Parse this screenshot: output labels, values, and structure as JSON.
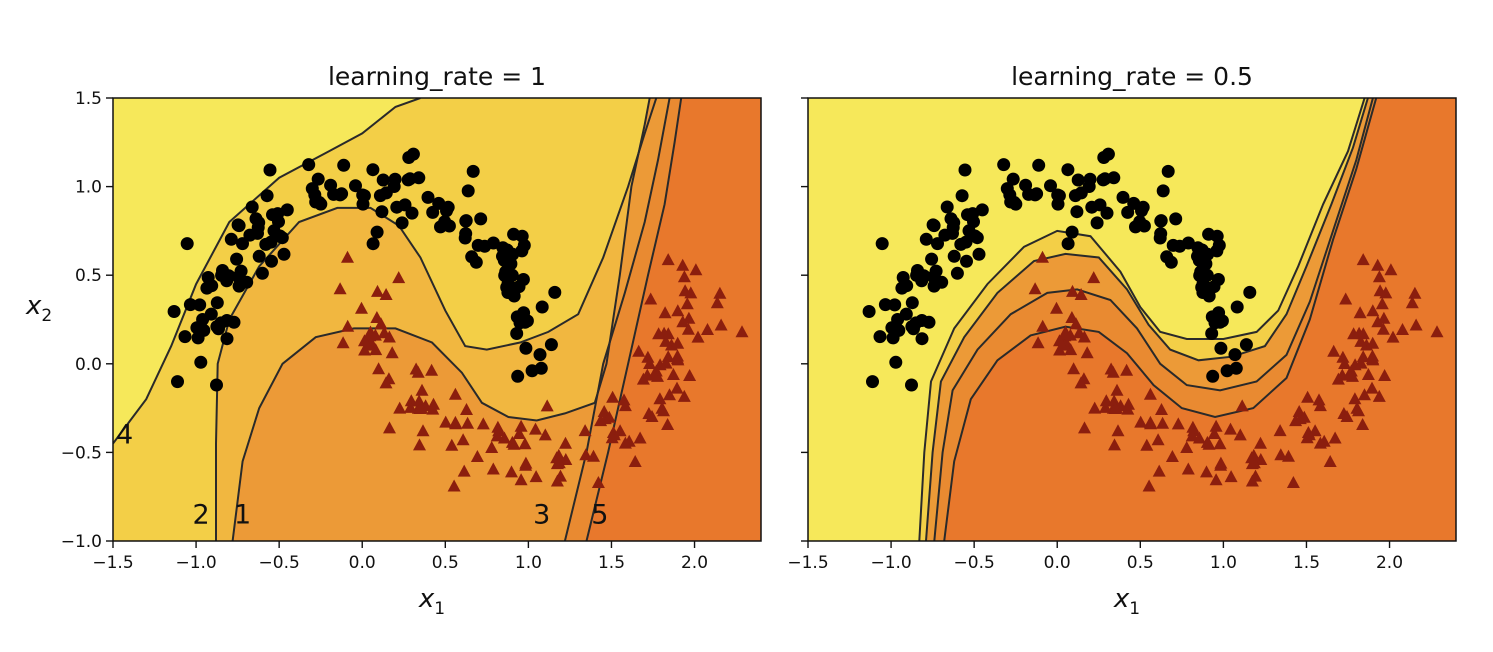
{
  "chart_data": [
    {
      "type": "scatter",
      "title": "learning_rate = 1",
      "xlabel": "x",
      "xlabel_sub": "1",
      "ylabel": "x",
      "ylabel_sub": "2",
      "xlim": [
        -1.5,
        2.4
      ],
      "ylim": [
        -1.0,
        1.5
      ],
      "xticks": [
        "−1.5",
        "−1.0",
        "−0.5",
        "0.0",
        "0.5",
        "1.0",
        "1.5",
        "2.0"
      ],
      "yticks": [
        "−1.0",
        "−0.5",
        "0.0",
        "0.5",
        "1.0",
        "1.5"
      ],
      "grid": false,
      "region_colors": [
        "#f6e85a",
        "#f3cf47",
        "#f1b740",
        "#ec9a37",
        "#e98a31",
        "#e8782c"
      ],
      "boundaries": [
        [
          [
            -1.5,
            -0.45
          ],
          [
            -1.3,
            -0.2
          ],
          [
            -1.15,
            0.1
          ],
          [
            -1.0,
            0.45
          ],
          [
            -0.8,
            0.8
          ],
          [
            -0.5,
            1.05
          ],
          [
            -0.2,
            1.2
          ],
          [
            0.0,
            1.3
          ],
          [
            0.2,
            1.45
          ],
          [
            0.35,
            1.5
          ]
        ],
        [
          [
            -0.88,
            -1.0
          ],
          [
            -0.88,
            -0.45
          ],
          [
            -0.87,
            0.0
          ],
          [
            -0.8,
            0.25
          ],
          [
            -0.62,
            0.55
          ],
          [
            -0.38,
            0.8
          ],
          [
            -0.15,
            0.88
          ],
          [
            0.05,
            0.88
          ],
          [
            0.22,
            0.78
          ],
          [
            0.35,
            0.6
          ],
          [
            0.5,
            0.3
          ],
          [
            0.62,
            0.1
          ],
          [
            0.75,
            0.08
          ],
          [
            0.95,
            0.12
          ],
          [
            1.12,
            0.18
          ],
          [
            1.3,
            0.28
          ],
          [
            1.45,
            0.6
          ],
          [
            1.6,
            1.0
          ],
          [
            1.7,
            1.3
          ],
          [
            1.77,
            1.5
          ]
        ],
        [
          [
            -0.78,
            -1.0
          ],
          [
            -0.72,
            -0.55
          ],
          [
            -0.62,
            -0.25
          ],
          [
            -0.48,
            0.0
          ],
          [
            -0.28,
            0.15
          ],
          [
            -0.05,
            0.2
          ],
          [
            0.2,
            0.2
          ],
          [
            0.42,
            0.12
          ],
          [
            0.6,
            -0.05
          ],
          [
            0.72,
            -0.22
          ],
          [
            0.88,
            -0.3
          ],
          [
            1.05,
            -0.32
          ],
          [
            1.22,
            -0.28
          ],
          [
            1.4,
            -0.22
          ],
          [
            1.47,
            0.0
          ],
          [
            1.55,
            0.5
          ],
          [
            1.62,
            1.0
          ],
          [
            1.7,
            1.35
          ],
          [
            1.73,
            1.5
          ]
        ],
        [
          [
            1.22,
            -1.0
          ],
          [
            1.35,
            -0.5
          ],
          [
            1.45,
            0.0
          ],
          [
            1.58,
            0.4
          ],
          [
            1.7,
            0.8
          ],
          [
            1.78,
            1.15
          ],
          [
            1.85,
            1.5
          ]
        ],
        [
          [
            1.35,
            -1.0
          ],
          [
            1.48,
            -0.5
          ],
          [
            1.6,
            0.0
          ],
          [
            1.72,
            0.5
          ],
          [
            1.82,
            0.9
          ],
          [
            1.88,
            1.25
          ],
          [
            1.92,
            1.5
          ]
        ]
      ],
      "zone_labels": [
        {
          "text": "4",
          "x": -1.43,
          "y": -0.45
        },
        {
          "text": "2",
          "x": -0.97,
          "y": -0.9
        },
        {
          "text": "1",
          "x": -0.72,
          "y": -0.9
        },
        {
          "text": "3",
          "x": 1.08,
          "y": -0.9
        },
        {
          "text": "5",
          "x": 1.43,
          "y": -0.9
        }
      ]
    },
    {
      "type": "scatter",
      "title": "learning_rate = 0.5",
      "xlabel": "x",
      "xlabel_sub": "1",
      "ylabel": "",
      "ylabel_sub": "",
      "xlim": [
        -1.5,
        2.4
      ],
      "ylim": [
        -1.0,
        1.5
      ],
      "xticks": [
        "−1.5",
        "−1.0",
        "−0.5",
        "0.0",
        "0.5",
        "1.0",
        "1.5",
        "2.0"
      ],
      "yticks": [],
      "grid": false,
      "region_colors": [
        "#f6e85a",
        "#f3cf47",
        "#f1b740",
        "#ec9a37",
        "#e98a31",
        "#e8782c"
      ],
      "boundaries": [
        [
          [
            -0.83,
            -1.0
          ],
          [
            -0.8,
            -0.5
          ],
          [
            -0.76,
            -0.1
          ],
          [
            -0.62,
            0.2
          ],
          [
            -0.42,
            0.45
          ],
          [
            -0.2,
            0.66
          ],
          [
            0.0,
            0.75
          ],
          [
            0.2,
            0.72
          ],
          [
            0.38,
            0.52
          ],
          [
            0.5,
            0.32
          ],
          [
            0.62,
            0.18
          ],
          [
            0.78,
            0.14
          ],
          [
            1.0,
            0.14
          ],
          [
            1.2,
            0.18
          ],
          [
            1.33,
            0.3
          ],
          [
            1.45,
            0.55
          ],
          [
            1.6,
            0.9
          ],
          [
            1.75,
            1.2
          ],
          [
            1.85,
            1.5
          ]
        ],
        [
          [
            -0.79,
            -1.0
          ],
          [
            -0.75,
            -0.5
          ],
          [
            -0.7,
            -0.1
          ],
          [
            -0.56,
            0.15
          ],
          [
            -0.36,
            0.4
          ],
          [
            -0.14,
            0.58
          ],
          [
            0.05,
            0.62
          ],
          [
            0.25,
            0.6
          ],
          [
            0.42,
            0.42
          ],
          [
            0.55,
            0.22
          ],
          [
            0.68,
            0.08
          ],
          [
            0.85,
            0.02
          ],
          [
            1.05,
            0.04
          ],
          [
            1.25,
            0.1
          ],
          [
            1.38,
            0.28
          ],
          [
            1.5,
            0.55
          ],
          [
            1.65,
            0.9
          ],
          [
            1.78,
            1.22
          ],
          [
            1.87,
            1.5
          ]
        ],
        [
          [
            -0.74,
            -1.0
          ],
          [
            -0.69,
            -0.5
          ],
          [
            -0.63,
            -0.15
          ],
          [
            -0.48,
            0.08
          ],
          [
            -0.28,
            0.28
          ],
          [
            -0.06,
            0.4
          ],
          [
            0.12,
            0.42
          ],
          [
            0.32,
            0.36
          ],
          [
            0.48,
            0.2
          ],
          [
            0.62,
            0.0
          ],
          [
            0.78,
            -0.12
          ],
          [
            0.98,
            -0.15
          ],
          [
            1.2,
            -0.1
          ],
          [
            1.38,
            0.05
          ],
          [
            1.52,
            0.35
          ],
          [
            1.66,
            0.75
          ],
          [
            1.8,
            1.15
          ],
          [
            1.9,
            1.5
          ]
        ],
        [
          [
            -0.68,
            -1.0
          ],
          [
            -0.62,
            -0.55
          ],
          [
            -0.52,
            -0.2
          ],
          [
            -0.36,
            0.02
          ],
          [
            -0.16,
            0.16
          ],
          [
            0.05,
            0.21
          ],
          [
            0.25,
            0.18
          ],
          [
            0.42,
            0.06
          ],
          [
            0.58,
            -0.12
          ],
          [
            0.75,
            -0.25
          ],
          [
            0.95,
            -0.3
          ],
          [
            1.18,
            -0.25
          ],
          [
            1.38,
            -0.08
          ],
          [
            1.52,
            0.25
          ],
          [
            1.66,
            0.7
          ],
          [
            1.8,
            1.1
          ],
          [
            1.92,
            1.5
          ]
        ]
      ],
      "zone_labels": []
    }
  ]
}
